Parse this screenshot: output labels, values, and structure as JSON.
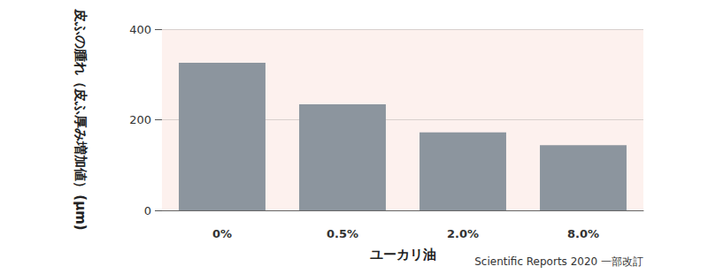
{
  "chart_data": {
    "type": "bar",
    "y_label": "皮ふの腫れ（皮ふ厚み増加値）(μm)",
    "x_label": "ユーカリ油",
    "source": "Scientific Reports 2020 一部改訂",
    "categories": [
      "0%",
      "0.5%",
      "2.0%",
      "8.0%"
    ],
    "values": [
      326,
      234,
      172,
      144
    ],
    "color": "#8c959e",
    "ylim": [
      0,
      400
    ],
    "yticks": [
      0,
      200,
      400
    ],
    "grid": true,
    "data_labels": false
  }
}
